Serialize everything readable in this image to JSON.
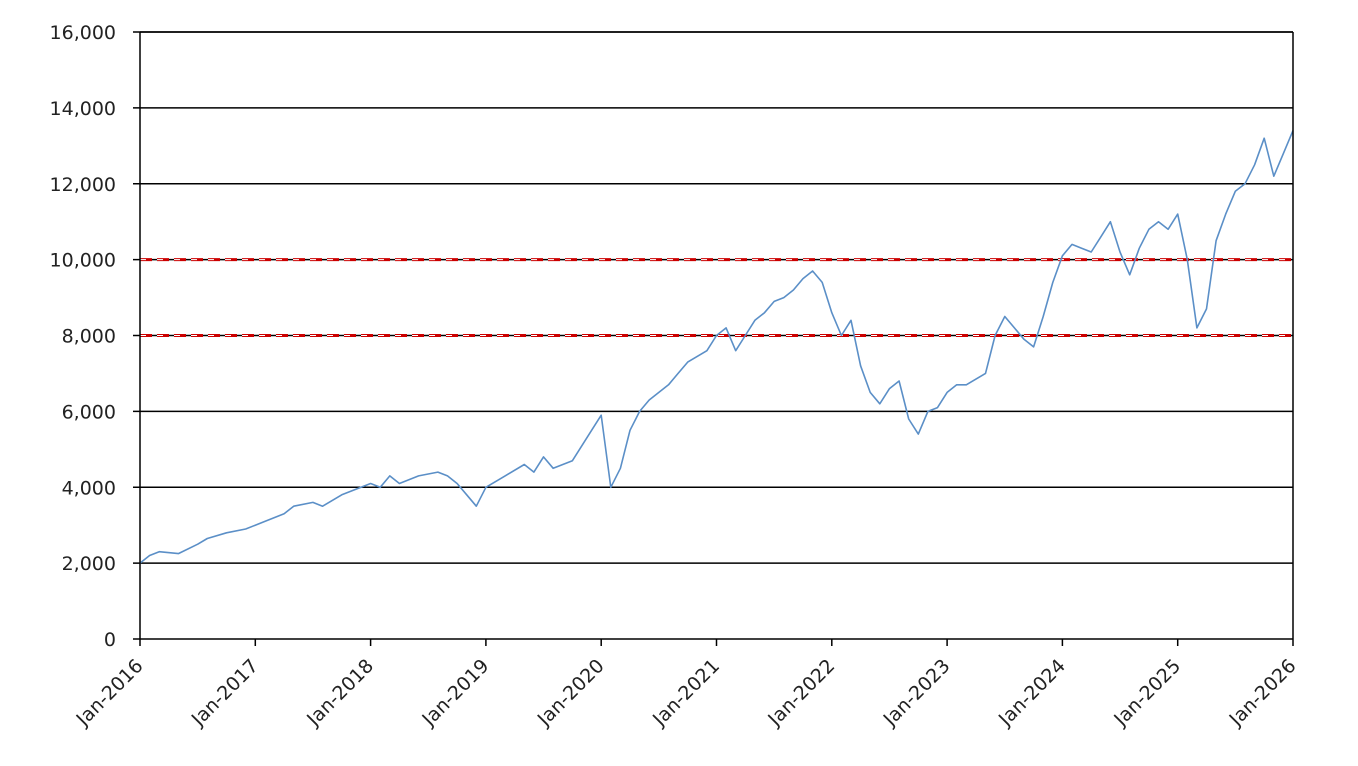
{
  "chart_data": {
    "type": "line",
    "title": "",
    "xlabel": "",
    "ylabel": "",
    "xlim": [
      "2016-01",
      "2026-01"
    ],
    "ylim": [
      0,
      16000
    ],
    "grid": true,
    "y_ticks": [
      {
        "value": 0,
        "label": "0"
      },
      {
        "value": 2000,
        "label": "2,000"
      },
      {
        "value": 4000,
        "label": "4,000"
      },
      {
        "value": 6000,
        "label": "6,000"
      },
      {
        "value": 8000,
        "label": "8,000"
      },
      {
        "value": 10000,
        "label": "10,000"
      },
      {
        "value": 12000,
        "label": "12,000"
      },
      {
        "value": 14000,
        "label": "14,000"
      },
      {
        "value": 16000,
        "label": "16,000"
      }
    ],
    "x_ticks": [
      {
        "value": "2016-01",
        "label": "Jan-2016"
      },
      {
        "value": "2017-01",
        "label": "Jan-2017"
      },
      {
        "value": "2018-01",
        "label": "Jan-2018"
      },
      {
        "value": "2019-01",
        "label": "Jan-2019"
      },
      {
        "value": "2020-01",
        "label": "Jan-2020"
      },
      {
        "value": "2021-01",
        "label": "Jan-2021"
      },
      {
        "value": "2022-01",
        "label": "Jan-2022"
      },
      {
        "value": "2023-01",
        "label": "Jan-2023"
      },
      {
        "value": "2024-01",
        "label": "Jan-2024"
      },
      {
        "value": "2025-01",
        "label": "Jan-2025"
      },
      {
        "value": "2026-01",
        "label": "Jan-2026"
      }
    ],
    "reference_lines": [
      {
        "y": 10000,
        "color": "#cc0000",
        "style": "dashed"
      },
      {
        "y": 8000,
        "color": "#cc0000",
        "style": "dashed"
      }
    ],
    "series": [
      {
        "color": "#5b8fc7",
        "x": [
          "2016-01",
          "2016-02",
          "2016-03",
          "2016-05",
          "2016-07",
          "2016-08",
          "2016-10",
          "2016-12",
          "2017-02",
          "2017-04",
          "2017-05",
          "2017-07",
          "2017-08",
          "2017-10",
          "2017-12",
          "2018-01",
          "2018-02",
          "2018-03",
          "2018-04",
          "2018-06",
          "2018-08",
          "2018-09",
          "2018-10",
          "2018-11",
          "2018-12",
          "2019-01",
          "2019-03",
          "2019-05",
          "2019-06",
          "2019-07",
          "2019-08",
          "2019-10",
          "2019-12",
          "2020-01",
          "2020-02",
          "2020-03",
          "2020-04",
          "2020-05",
          "2020-06",
          "2020-08",
          "2020-09",
          "2020-10",
          "2020-12",
          "2021-01",
          "2021-02",
          "2021-03",
          "2021-04",
          "2021-05",
          "2021-06",
          "2021-07",
          "2021-08",
          "2021-09",
          "2021-10",
          "2021-11",
          "2021-12",
          "2022-01",
          "2022-02",
          "2022-03",
          "2022-04",
          "2022-05",
          "2022-06",
          "2022-07",
          "2022-08",
          "2022-09",
          "2022-10",
          "2022-11",
          "2022-12",
          "2023-01",
          "2023-02",
          "2023-03",
          "2023-05",
          "2023-06",
          "2023-07",
          "2023-08",
          "2023-09",
          "2023-10",
          "2023-11",
          "2023-12",
          "2024-01",
          "2024-02",
          "2024-03",
          "2024-04",
          "2024-05",
          "2024-06",
          "2024-07",
          "2024-08",
          "2024-09",
          "2024-10",
          "2024-11",
          "2024-12",
          "2025-01",
          "2025-02",
          "2025-03",
          "2025-04",
          "2025-05",
          "2025-06",
          "2025-07",
          "2025-08",
          "2025-09",
          "2025-10",
          "2025-11",
          "2025-12",
          "2026-01"
        ],
        "y": [
          2000,
          2200,
          2300,
          2250,
          2500,
          2650,
          2800,
          2900,
          3100,
          3300,
          3500,
          3600,
          3500,
          3800,
          4000,
          4100,
          4000,
          4300,
          4100,
          4300,
          4400,
          4300,
          4100,
          3800,
          3500,
          4000,
          4300,
          4600,
          4400,
          4800,
          4500,
          4700,
          5500,
          5900,
          4000,
          4500,
          5500,
          6000,
          6300,
          6700,
          7000,
          7300,
          7600,
          8000,
          8200,
          7600,
          8000,
          8400,
          8600,
          8900,
          9000,
          9200,
          9500,
          9700,
          9400,
          8600,
          8000,
          8400,
          7200,
          6500,
          6200,
          6600,
          6800,
          5800,
          5400,
          6000,
          6100,
          6500,
          6700,
          6700,
          7000,
          8000,
          8500,
          8200,
          7900,
          7700,
          8500,
          9400,
          10100,
          10400,
          10300,
          10200,
          10600,
          11000,
          10200,
          9600,
          10300,
          10800,
          11000,
          10800,
          11200,
          10000,
          8200,
          8700,
          10500,
          11200,
          11800,
          12000,
          12500,
          13200,
          12200,
          12800,
          13400
        ]
      }
    ]
  }
}
